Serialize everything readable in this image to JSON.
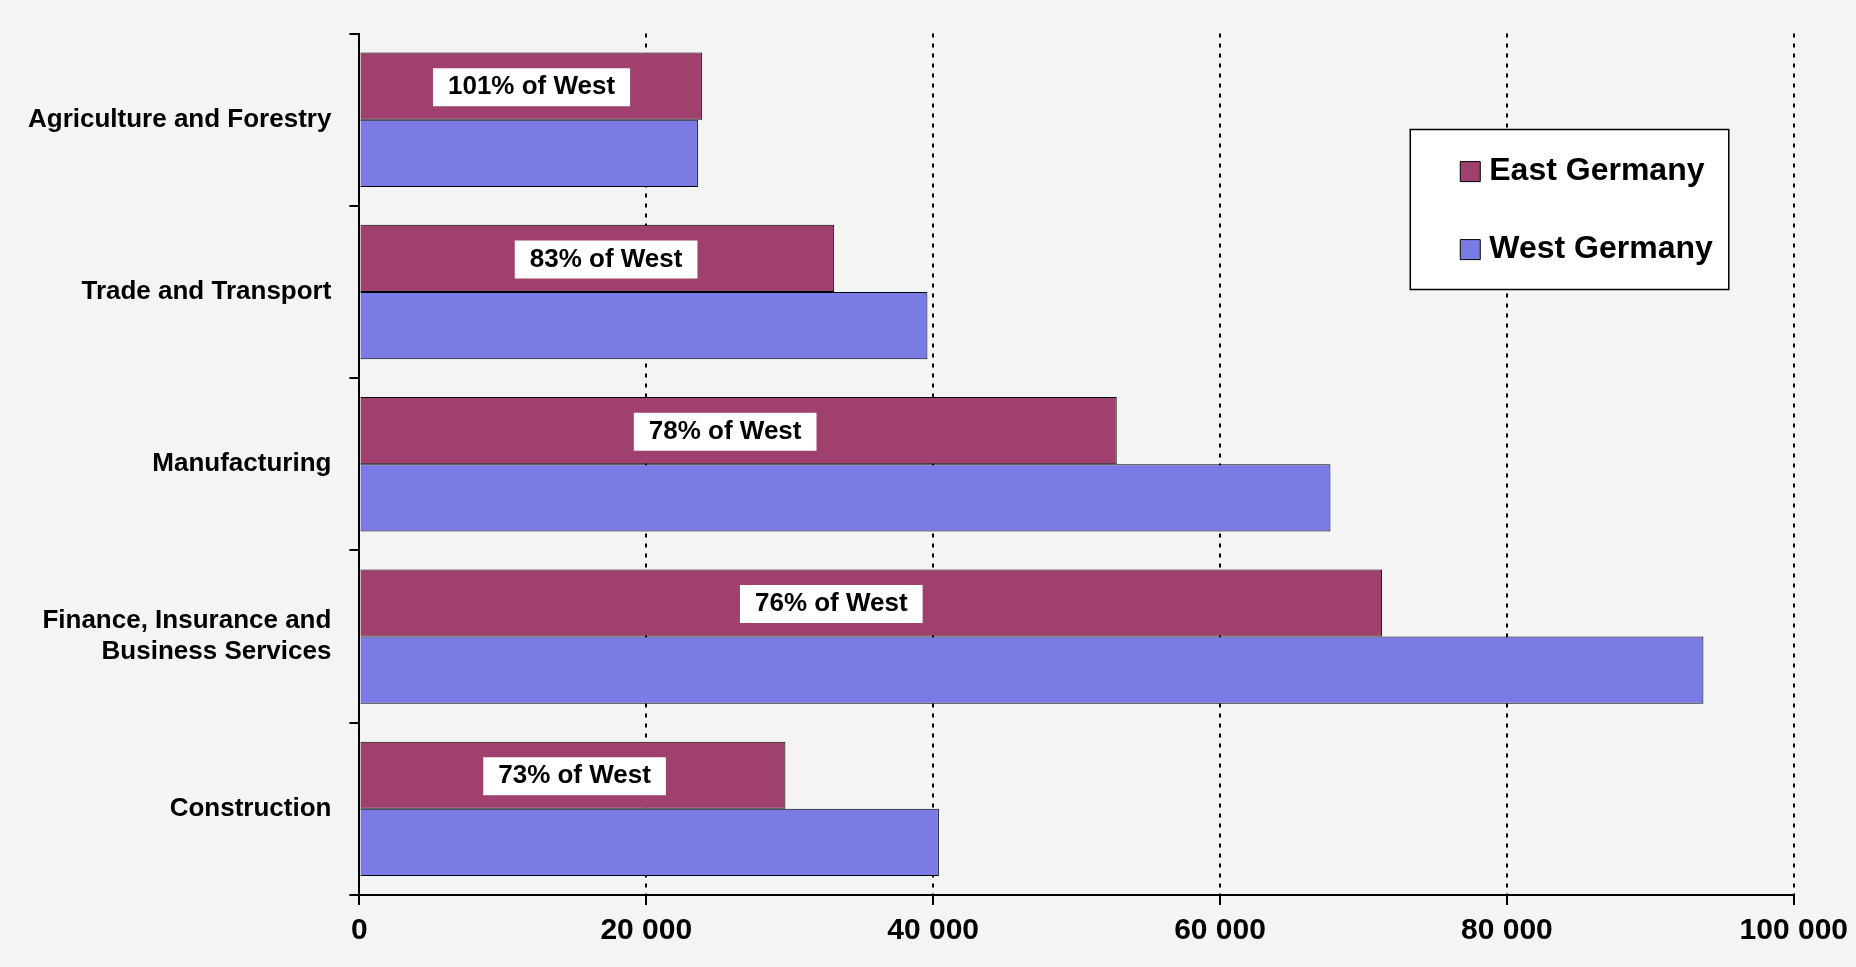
{
  "chart_data": {
    "type": "bar",
    "orientation": "horizontal",
    "categories": [
      "Agriculture and Forestry",
      "Trade and Transport",
      "Manufacturing",
      "Finance, Insurance and Business Services",
      "Construction"
    ],
    "series": [
      {
        "name": "East Germany",
        "color": "#a0406e",
        "values": [
          23900,
          33100,
          52800,
          71300,
          29700
        ]
      },
      {
        "name": "West Germany",
        "color": "#7b7be6",
        "values": [
          23600,
          39600,
          67700,
          93700,
          40400
        ]
      }
    ],
    "xlim": [
      0,
      100000
    ],
    "xticks": [
      0,
      {
        "value": 20000,
        "label": "20 000"
      },
      {
        "value": 40000,
        "label": "40 000"
      },
      {
        "value": 60000,
        "label": "60 000"
      },
      {
        "value": 80000,
        "label": "80 000"
      },
      {
        "value": 100000,
        "label": "100 000"
      }
    ],
    "annotations": [
      {
        "text": "101% of West",
        "x": 12000,
        "y": "Agriculture and Forestry"
      },
      {
        "text": "83% of West",
        "x": 17200,
        "y": "Trade and Transport"
      },
      {
        "text": "78% of West",
        "x": 25500,
        "y": "Manufacturing"
      },
      {
        "text": "76% of West",
        "x": 32900,
        "y": "Finance, Insurance and Business Services"
      },
      {
        "text": "73% of West",
        "x": 15000,
        "y": "Construction"
      }
    ],
    "grid": "x",
    "legend": "top right"
  }
}
